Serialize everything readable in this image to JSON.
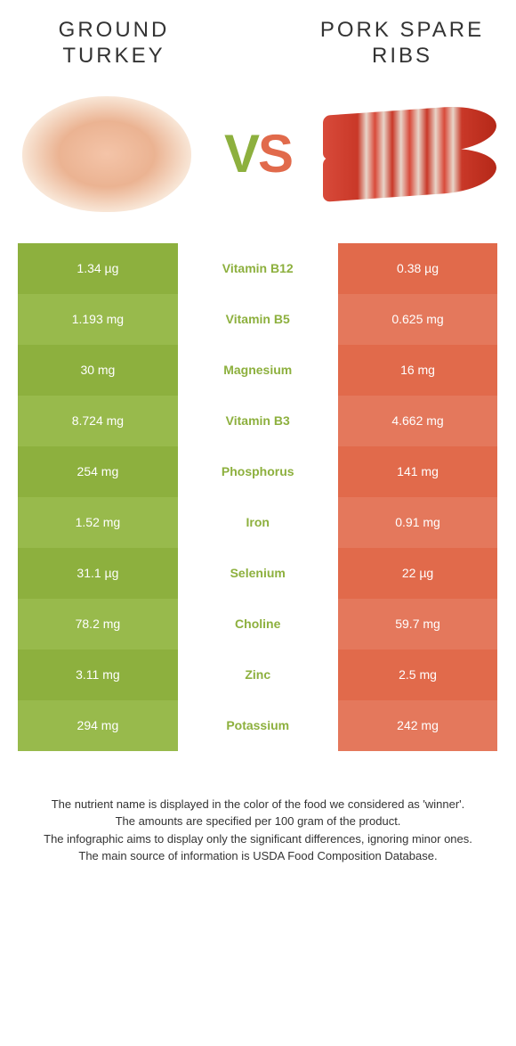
{
  "titles": {
    "left": "GROUND TURKEY",
    "right": "PORK SPARE RIBS"
  },
  "vs": {
    "v": "V",
    "s": "S"
  },
  "colors": {
    "left_base": "#8db03e",
    "left_alt": "#98ba4c",
    "right_base": "#e16a4b",
    "right_alt": "#e4785c",
    "mid_left_text": "#8db03e",
    "mid_right_text": "#e16a4b"
  },
  "rows": [
    {
      "left": "1.34 µg",
      "nutrient": "Vitamin B12",
      "right": "0.38 µg",
      "winner": "left"
    },
    {
      "left": "1.193 mg",
      "nutrient": "Vitamin B5",
      "right": "0.625 mg",
      "winner": "left"
    },
    {
      "left": "30 mg",
      "nutrient": "Magnesium",
      "right": "16 mg",
      "winner": "left"
    },
    {
      "left": "8.724 mg",
      "nutrient": "Vitamin B3",
      "right": "4.662 mg",
      "winner": "left"
    },
    {
      "left": "254 mg",
      "nutrient": "Phosphorus",
      "right": "141 mg",
      "winner": "left"
    },
    {
      "left": "1.52 mg",
      "nutrient": "Iron",
      "right": "0.91 mg",
      "winner": "left"
    },
    {
      "left": "31.1 µg",
      "nutrient": "Selenium",
      "right": "22 µg",
      "winner": "left"
    },
    {
      "left": "78.2 mg",
      "nutrient": "Choline",
      "right": "59.7 mg",
      "winner": "left"
    },
    {
      "left": "3.11 mg",
      "nutrient": "Zinc",
      "right": "2.5 mg",
      "winner": "left"
    },
    {
      "left": "294 mg",
      "nutrient": "Potassium",
      "right": "242 mg",
      "winner": "left"
    }
  ],
  "footer": {
    "l1": "The nutrient name is displayed in the color of the food we considered as 'winner'.",
    "l2": "The amounts are specified per 100 gram of the product.",
    "l3": "The infographic aims to display only the significant differences, ignoring minor ones.",
    "l4": "The main source of information is USDA Food Composition Database."
  }
}
